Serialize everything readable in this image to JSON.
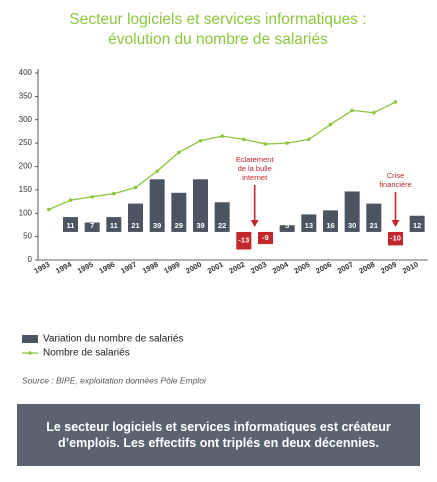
{
  "chart_data": {
    "type": "bar_line",
    "title": [
      "Secteur logiciels et services informatiques :",
      "évolution du nombre de salariés"
    ],
    "categories": [
      "1993",
      "1994",
      "1995",
      "1996",
      "1997",
      "1998",
      "1999",
      "2000",
      "2001",
      "2002",
      "2003",
      "2004",
      "2005",
      "2006",
      "2007",
      "2008",
      "2009",
      "2010"
    ],
    "series": [
      {
        "name": "Variation du nombre de salariés",
        "type": "bar",
        "color": "#4b5561",
        "negative_color": "#c1272d",
        "values": [
          null,
          11,
          7,
          11,
          21,
          39,
          29,
          39,
          22,
          -13,
          -9,
          5,
          13,
          16,
          30,
          21,
          -10,
          12
        ]
      },
      {
        "name": "Nombre de salariés",
        "type": "line",
        "color": "#8cc63f",
        "values": [
          108,
          128,
          135,
          142,
          155,
          190,
          230,
          255,
          265,
          258,
          248,
          250,
          258,
          290,
          320,
          315,
          338,
          null
        ]
      }
    ],
    "ylim": [
      0,
      400
    ],
    "yticks": [
      0,
      50,
      100,
      150,
      200,
      250,
      300,
      350,
      400
    ],
    "annotations": [
      [
        "Eclatement",
        "de la bulle",
        "internet"
      ],
      [
        "Crise",
        "financière"
      ]
    ],
    "source": "Source : BIPE, exploitation données Pôle Emploi",
    "note": "Le secteur logiciels et services informatiques est créateur d’emplois. Les effectifs ont triplés en deux décennies."
  }
}
